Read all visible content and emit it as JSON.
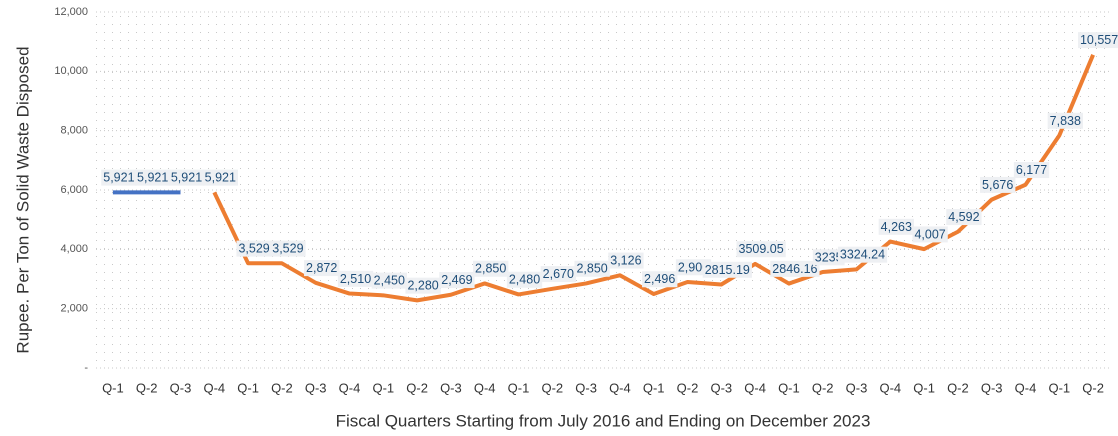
{
  "chart_data": {
    "type": "line",
    "y_label": "Rupee. Per Ton of Solid Waste Disposed",
    "x_label": "Fiscal Quarters Starting from July 2016 and Ending on December 2023",
    "categories": [
      "Q-1",
      "Q-2",
      "Q-3",
      "Q-4",
      "Q-1",
      "Q-2",
      "Q-3",
      "Q-4",
      "Q-1",
      "Q-2",
      "Q-3",
      "Q-4",
      "Q-1",
      "Q-2",
      "Q-3",
      "Q-4",
      "Q-1",
      "Q-2",
      "Q-3",
      "Q-4",
      "Q-1",
      "Q-2",
      "Q-3",
      "Q-4",
      "Q-1",
      "Q-2",
      "Q-3",
      "Q-4",
      "Q-1",
      "Q-2"
    ],
    "series": [
      {
        "color": "#4472c4",
        "values": [
          5921,
          5921,
          5921,
          null,
          null,
          null,
          null,
          null,
          null,
          null,
          null,
          null,
          null,
          null,
          null,
          null,
          null,
          null,
          null,
          null,
          null,
          null,
          null,
          null,
          null,
          null,
          null,
          null,
          null,
          null
        ],
        "value_labels": [
          "5,921",
          "5,921",
          "5,921",
          null,
          null,
          null,
          null,
          null,
          null,
          null,
          null,
          null,
          null,
          null,
          null,
          null,
          null,
          null,
          null,
          null,
          null,
          null,
          null,
          null,
          null,
          null,
          null,
          null,
          null,
          null
        ]
      },
      {
        "color": "#ed7d31",
        "values": [
          null,
          null,
          null,
          5921,
          3529,
          3529,
          2872,
          2510,
          2450,
          2280,
          2469,
          2850,
          2480,
          2670,
          2850,
          3126,
          2496,
          2900,
          2815.19,
          3509.05,
          2846.16,
          3235,
          3324.24,
          4263,
          4007,
          4592,
          5676,
          6177,
          7838,
          10557
        ],
        "value_labels": [
          null,
          null,
          null,
          "5,921",
          "3,529",
          "3,529",
          "2,872",
          "2,510",
          "2,450",
          "2,280",
          "2,469",
          "2,850",
          "2,480",
          "2,670",
          "2,850",
          "3,126",
          "2,496",
          "2,900",
          "2815.19",
          "3509.05",
          "2846.16",
          "3235",
          "3324.24",
          "4,263",
          "4,007",
          "4,592",
          "5,676",
          "6,177",
          "7,838",
          "10,557"
        ]
      }
    ],
    "ylim": [
      0,
      12000
    ],
    "yticks": [
      {
        "value": 0,
        "label": "-"
      },
      {
        "value": 2000,
        "label": "2,000"
      },
      {
        "value": 4000,
        "label": "4,000"
      },
      {
        "value": 6000,
        "label": "6,000"
      },
      {
        "value": 8000,
        "label": "8,000"
      },
      {
        "value": 10000,
        "label": "10,000"
      },
      {
        "value": 12000,
        "label": "12,000"
      }
    ],
    "grid": true
  }
}
